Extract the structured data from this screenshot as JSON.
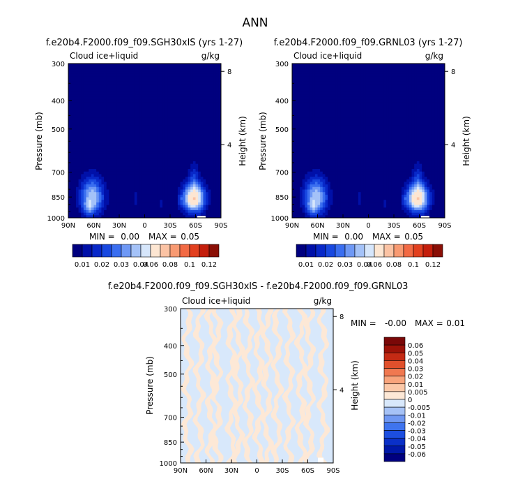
{
  "page_title": "ANN",
  "colors": {
    "abs_levels": [
      "#00007f",
      "#0010a8",
      "#0828c8",
      "#1848e0",
      "#3a6ef0",
      "#6e98f5",
      "#a4c2f8",
      "#d6e6fb",
      "#fde6d2",
      "#fbc3a4",
      "#f89a72",
      "#f26a44",
      "#e2401f",
      "#c41e0c",
      "#8a0f06"
    ],
    "diff_levels": [
      "#00007f",
      "#0018a8",
      "#0a30c8",
      "#1c4ee0",
      "#3f74ee",
      "#7098f2",
      "#a6c2f6",
      "#d8e8fb",
      "#fde8d6",
      "#fbc8a8",
      "#f8a47c",
      "#f07850",
      "#e0502c",
      "#c42a14",
      "#9c1208",
      "#7a0808"
    ],
    "frame": "#000000"
  },
  "chart_data": [
    {
      "type": "heatmap",
      "name": "panel-sgh30",
      "title": "f.e20b4.F2000.f09_f09.SGH30xlS (yrs 1-27)",
      "left_label": "Cloud ice+liquid",
      "units": "g/kg",
      "ylabel": "Pressure (mb)",
      "y2label": "Height (km)",
      "xticks": [
        "90N",
        "60N",
        "30N",
        "0",
        "30S",
        "60S",
        "90S"
      ],
      "yticks": [
        "300",
        "400",
        "500",
        "700",
        "850",
        "1000"
      ],
      "y2ticks": [
        "8",
        "4"
      ],
      "stats": {
        "min_label": "MIN =",
        "min": "0.00",
        "max_label": "MAX =",
        "max": "0.05"
      },
      "colorbar_labels": [
        "0.01",
        "0.02",
        "0.03",
        "0.04",
        "0.06",
        "0.08",
        "0.1",
        "0.12"
      ],
      "blobs": [
        {
          "lat": 62,
          "p": 850,
          "sx": 14,
          "sp": 120,
          "amp": 0.034
        },
        {
          "lat": 66,
          "p": 930,
          "sx": 7,
          "sp": 50,
          "amp": 0.012
        },
        {
          "lat": -58,
          "p": 860,
          "sx": 13,
          "sp": 95,
          "amp": 0.05
        },
        {
          "lat": -58,
          "p": 720,
          "sx": 6,
          "sp": 90,
          "amp": 0.01
        },
        {
          "lat": 10,
          "p": 860,
          "sx": 3,
          "sp": 50,
          "amp": 0.009
        },
        {
          "lat": -20,
          "p": 890,
          "sx": 3,
          "sp": 40,
          "amp": 0.008
        },
        {
          "lat": -42,
          "p": 870,
          "sx": 3,
          "sp": 40,
          "amp": 0.008
        }
      ]
    },
    {
      "type": "heatmap",
      "name": "panel-grnl03",
      "title": "f.e20b4.F2000.f09_f09.GRNL03 (yrs 1-27)",
      "left_label": "Cloud ice+liquid",
      "units": "g/kg",
      "ylabel": "Pressure (mb)",
      "y2label": "Height (km)",
      "xticks": [
        "90N",
        "60N",
        "30N",
        "0",
        "30S",
        "60S",
        "90S"
      ],
      "yticks": [
        "300",
        "400",
        "500",
        "700",
        "850",
        "1000"
      ],
      "y2ticks": [
        "8",
        "4"
      ],
      "stats": {
        "min_label": "MIN =",
        "min": "0.00",
        "max_label": "MAX =",
        "max": "0.05"
      },
      "colorbar_labels": [
        "0.01",
        "0.02",
        "0.03",
        "0.04",
        "0.06",
        "0.08",
        "0.1",
        "0.12"
      ],
      "blobs": [
        {
          "lat": 62,
          "p": 850,
          "sx": 14,
          "sp": 120,
          "amp": 0.034
        },
        {
          "lat": 66,
          "p": 930,
          "sx": 7,
          "sp": 50,
          "amp": 0.012
        },
        {
          "lat": -58,
          "p": 860,
          "sx": 13,
          "sp": 95,
          "amp": 0.05
        },
        {
          "lat": -58,
          "p": 720,
          "sx": 6,
          "sp": 90,
          "amp": 0.01
        },
        {
          "lat": 10,
          "p": 860,
          "sx": 3,
          "sp": 50,
          "amp": 0.009
        },
        {
          "lat": -20,
          "p": 890,
          "sx": 3,
          "sp": 40,
          "amp": 0.008
        },
        {
          "lat": -42,
          "p": 870,
          "sx": 3,
          "sp": 40,
          "amp": 0.008
        }
      ]
    },
    {
      "type": "heatmap",
      "name": "panel-difference",
      "title": "f.e20b4.F2000.f09_f09.SGH30xlS - f.e20b4.F2000.f09_f09.GRNL03",
      "left_label": "Cloud ice+liquid",
      "units": "g/kg",
      "ylabel": "Pressure (mb)",
      "y2label": "Height (km)",
      "xticks": [
        "90N",
        "60N",
        "30N",
        "0",
        "30S",
        "60S",
        "90S"
      ],
      "yticks": [
        "300",
        "400",
        "500",
        "700",
        "850",
        "1000"
      ],
      "y2ticks": [
        "8",
        "4"
      ],
      "stats": {
        "min_label": "MIN =",
        "min": "-0.00",
        "max_label": "MAX =",
        "max": "0.01"
      },
      "colorbar_labels": [
        "0.06",
        "0.05",
        "0.04",
        "0.03",
        "0.02",
        "0.01",
        "0.005",
        "0",
        "-0.005",
        "-0.01",
        "-0.02",
        "-0.03",
        "-0.04",
        "-0.05",
        "-0.06"
      ],
      "stripes_lat": [
        82,
        68,
        54,
        47,
        30,
        22,
        10,
        -2,
        -12,
        -24,
        -38,
        -52,
        -62,
        -78
      ]
    }
  ]
}
